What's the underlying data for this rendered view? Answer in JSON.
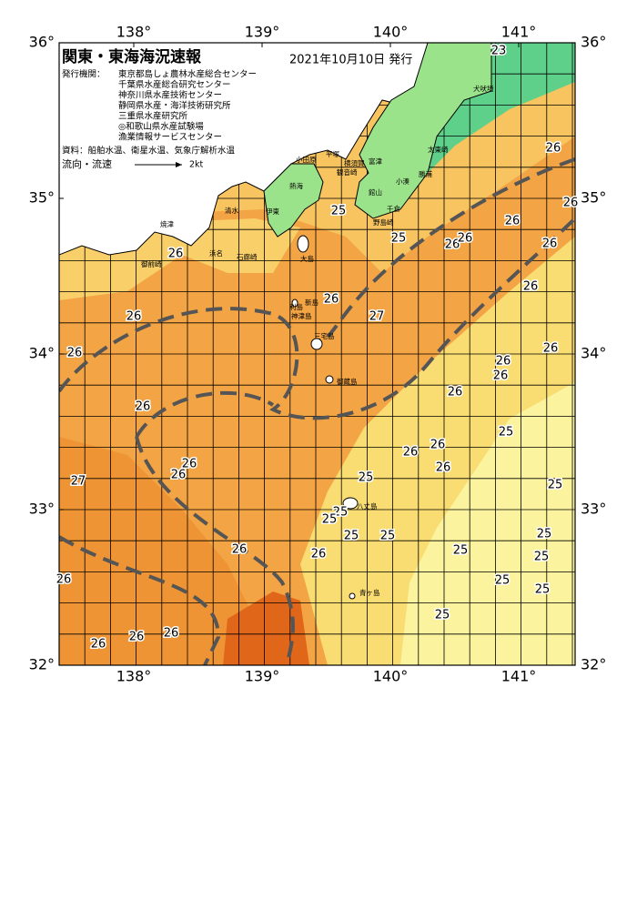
{
  "header": {
    "title": "関東・東海海況速報",
    "date": "2021年10月10日 発行",
    "issuer_label": "発行機関：",
    "issuers": [
      "東京都島しょ農林水産総合センター",
      "千葉県水産総合研究センター",
      "神奈川県水産技術センター",
      "静岡県水産・海洋技術研究所",
      "三重県水産研究所",
      "◎和歌山県水産試験場",
      "漁業情報サービスセンター"
    ],
    "sources": "資料：船舶水温、衛星水温、気象庁解析水温",
    "current_label": "流向・流速",
    "current_scale": "2kt"
  },
  "map": {
    "lon_ticks": [
      {
        "value": 138,
        "label": "138°"
      },
      {
        "value": 139,
        "label": "139°"
      },
      {
        "value": 140,
        "label": "140°"
      },
      {
        "value": 141,
        "label": "141°"
      }
    ],
    "lat_ticks": [
      {
        "value": 36,
        "label": "36°"
      },
      {
        "value": 35,
        "label": "35°"
      },
      {
        "value": 34,
        "label": "34°"
      },
      {
        "value": 33,
        "label": "33°"
      },
      {
        "value": 32,
        "label": "32°"
      }
    ],
    "temperature_labels": [
      23,
      26,
      25,
      25,
      26,
      26,
      26,
      26,
      26,
      26,
      26,
      26,
      27,
      26,
      26,
      26,
      26,
      26,
      26,
      26,
      25,
      26,
      26,
      26,
      26,
      26,
      27,
      25,
      25,
      25,
      25,
      25,
      25,
      25,
      26,
      26,
      25,
      25,
      25,
      25,
      26,
      25,
      26,
      26,
      26
    ],
    "places": [
      "犬吠埼",
      "太東崎",
      "勝浦",
      "小湊",
      "館山",
      "千倉",
      "野島崎",
      "横須賀",
      "観音崎",
      "富津",
      "平塚",
      "小田原",
      "熱海",
      "伊東",
      "石廊崎",
      "清水",
      "焼津",
      "御前崎",
      "浜名",
      "大島",
      "利島",
      "新島",
      "神津島",
      "三宅島",
      "御蔵島",
      "八丈島",
      "青ヶ島"
    ]
  }
}
